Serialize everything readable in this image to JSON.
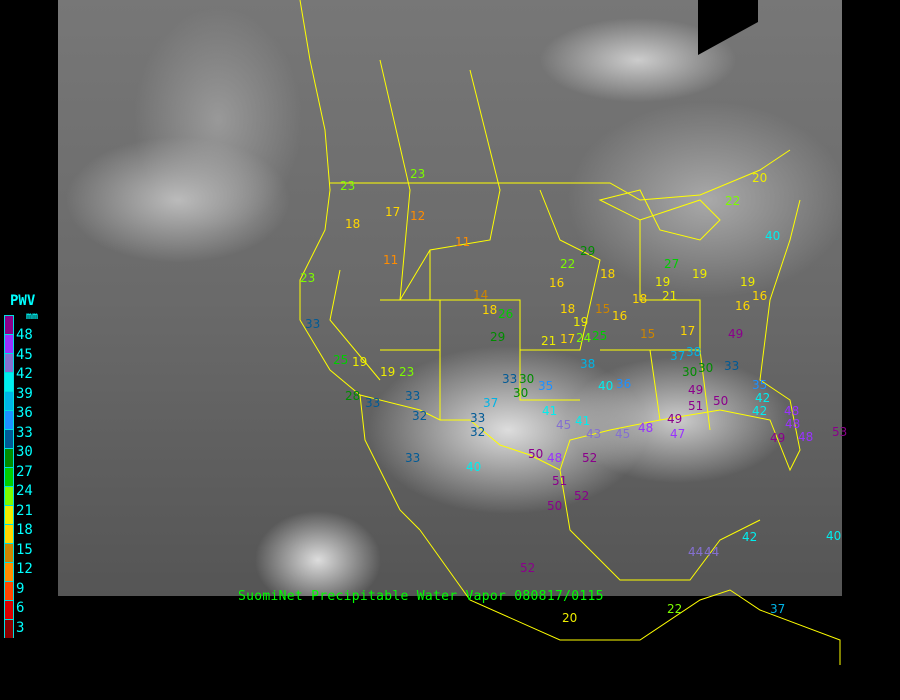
{
  "caption": "SuomiNet Precipitable Water Vapor 080817/0115",
  "legend": {
    "title": "PWV",
    "unit": "mm",
    "ticks": [
      "48",
      "45",
      "42",
      "39",
      "36",
      "33",
      "30",
      "27",
      "24",
      "21",
      "18",
      "15",
      "12",
      "9",
      "6",
      "3"
    ],
    "colors": [
      "#8b008b",
      "#9932ff",
      "#8470d0",
      "#00eeee",
      "#00b4e6",
      "#1e90ff",
      "#005a96",
      "#008c00",
      "#00cd00",
      "#7cfc00",
      "#eeee00",
      "#ffd700",
      "#cd8500",
      "#ff8c00",
      "#ff4500",
      "#dd0000",
      "#8b0000"
    ]
  },
  "map_colors": {
    "borders": "#ffff00",
    "background": "#000000"
  },
  "stations": [
    23,
    23,
    18,
    17,
    12,
    11,
    11,
    23,
    33,
    19,
    25,
    19,
    23,
    28,
    33,
    33,
    32,
    33,
    37,
    32,
    40,
    53,
    33,
    14,
    18,
    29,
    21,
    16,
    22,
    18,
    15,
    16,
    18,
    19,
    21,
    19,
    19,
    17,
    15,
    16,
    16,
    19,
    17,
    18,
    26,
    24,
    25,
    30,
    33,
    35,
    38,
    40,
    41,
    41,
    45,
    43,
    45,
    48,
    49,
    47,
    48,
    50,
    52,
    51,
    52,
    50,
    51,
    49,
    38,
    30,
    33,
    35,
    42,
    42,
    48,
    49,
    48,
    50,
    49,
    48,
    44,
    40,
    52,
    20,
    22,
    37,
    37,
    30,
    36,
    40,
    29,
    27,
    20,
    22,
    44,
    42,
    30
  ]
}
